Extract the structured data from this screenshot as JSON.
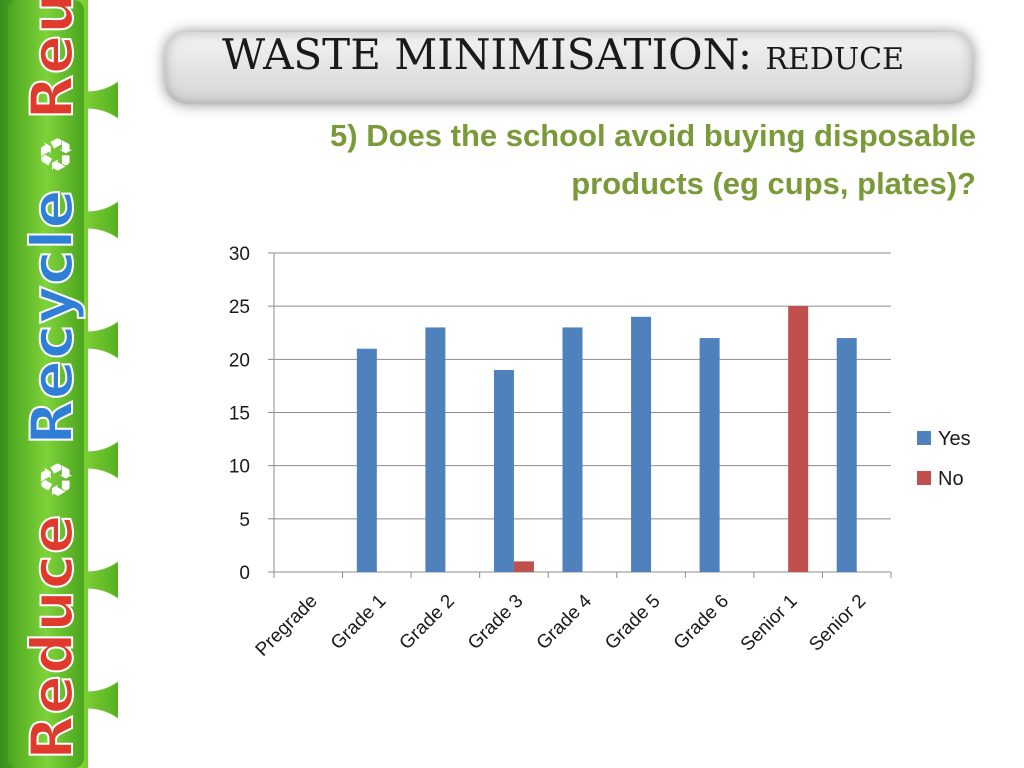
{
  "banner": {
    "words": [
      "Reduce",
      "Recycle",
      "Reuse"
    ],
    "icon": "recycle-icon",
    "colors": {
      "reduce": "#e03a2c",
      "recycle": "#2f7fd6",
      "green": "#5fbf2a"
    }
  },
  "header": {
    "title_main": "WASTE MINIMISATION: ",
    "title_sub": "REDUCE",
    "question": "5) Does the school avoid buying disposable products (eg cups, plates)?"
  },
  "chart_data": {
    "type": "bar",
    "categories": [
      "Pregrade",
      "Grade 1",
      "Grade 2",
      "Grade 3",
      "Grade 4",
      "Grade 5",
      "Grade 6",
      "Senior 1",
      "Senior 2"
    ],
    "series": [
      {
        "name": "Yes",
        "color": "#4f81bd",
        "values": [
          0,
          21,
          23,
          19,
          23,
          24,
          22,
          0,
          22
        ]
      },
      {
        "name": "No",
        "color": "#c0504d",
        "values": [
          0,
          0,
          0,
          1,
          0,
          0,
          0,
          25,
          0
        ]
      }
    ],
    "ylim": [
      0,
      30
    ],
    "yticks": [
      0,
      5,
      10,
      15,
      20,
      25,
      30
    ],
    "grid": true,
    "legend": "right"
  }
}
